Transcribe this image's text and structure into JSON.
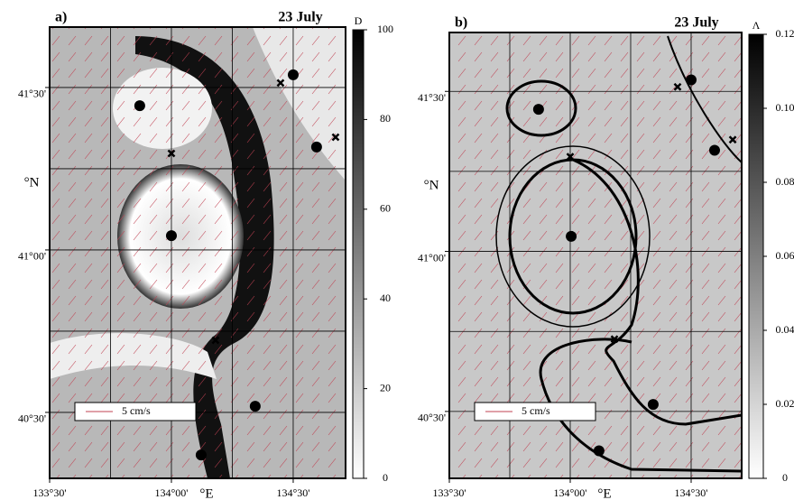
{
  "chart_data": [
    {
      "type": "scatter",
      "panel_label": "a)",
      "title": "23 July",
      "xlabel": "°E",
      "ylabel": "°N",
      "xlim": [
        133.5,
        134.715
      ],
      "ylim": [
        40.297,
        41.686
      ],
      "xticks": [
        {
          "value": 133.5,
          "label": "133°30'"
        },
        {
          "value": 134.0,
          "label": "134°00'"
        },
        {
          "value": 134.5,
          "label": "134°30'"
        }
      ],
      "yticks": [
        {
          "value": 40.5,
          "label": "40°30'"
        },
        {
          "value": 41.0,
          "label": "41°00'"
        },
        {
          "value": 41.5,
          "label": "41°30'"
        }
      ],
      "xgrid": [
        133.75,
        134.0,
        134.25,
        134.5
      ],
      "ygrid": [
        40.5,
        40.75,
        41.0,
        41.25,
        41.5
      ],
      "circles": {
        "x": [
          133.87,
          134.5,
          134.596,
          134.0,
          134.344,
          134.122
        ],
        "y": [
          41.444,
          41.539,
          41.317,
          41.044,
          40.519,
          40.369
        ]
      },
      "crosses": {
        "x": [
          134.448,
          134.674,
          134.0,
          134.181
        ],
        "y": [
          41.514,
          41.347,
          41.297,
          40.722
        ]
      },
      "scale_label": "5 cm/s",
      "colorbar": {
        "label": "D",
        "lim": [
          0,
          100
        ],
        "ticks": [
          0,
          20,
          40,
          60,
          80,
          100
        ]
      }
    },
    {
      "type": "scatter",
      "panel_label": "b)",
      "title": "23 July",
      "xlabel": "°E",
      "ylabel": "°N",
      "xlim": [
        133.5,
        134.709
      ],
      "ylim": [
        40.291,
        41.684
      ],
      "xticks": [
        {
          "value": 133.5,
          "label": "133°30'"
        },
        {
          "value": 134.0,
          "label": "134°00'"
        },
        {
          "value": 134.5,
          "label": "134°30'"
        }
      ],
      "yticks": [
        {
          "value": 40.5,
          "label": "40°30'"
        },
        {
          "value": 41.0,
          "label": "41°00'"
        },
        {
          "value": 41.5,
          "label": "41°30'"
        }
      ],
      "xgrid": [
        133.75,
        134.0,
        134.25,
        134.5
      ],
      "ygrid": [
        40.5,
        40.75,
        41.0,
        41.25,
        41.5
      ],
      "circles": {
        "x": [
          133.869,
          134.5,
          134.597,
          134.004,
          134.343,
          134.119
        ],
        "y": [
          41.444,
          41.536,
          41.316,
          41.047,
          40.522,
          40.377
        ]
      },
      "crosses": {
        "x": [
          134.444,
          134.672,
          134.0,
          134.183
        ],
        "y": [
          41.514,
          41.349,
          41.296,
          40.726
        ]
      },
      "scale_label": "5 cm/s",
      "colorbar": {
        "label": "Λ",
        "lim": [
          0,
          0.12
        ],
        "ticks": [
          0,
          0.02,
          0.04,
          0.06,
          0.08,
          {
            "value": 0.1,
            "label": "0.10"
          },
          0.12
        ]
      }
    }
  ]
}
